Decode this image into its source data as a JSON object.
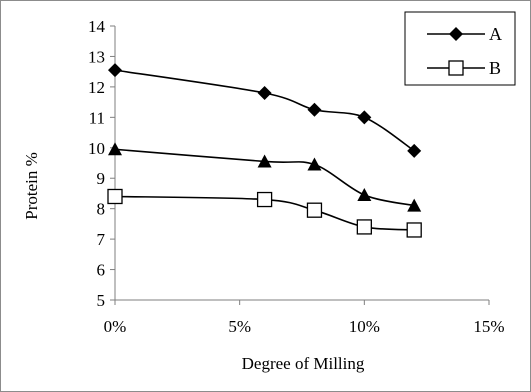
{
  "chart_data": {
    "type": "line",
    "xlabel": "Degree of Milling",
    "ylabel": "Protein %",
    "x_tick_labels": [
      "0%",
      "5%",
      "10%",
      "15%"
    ],
    "y_tick_labels": [
      "5",
      "6",
      "7",
      "8",
      "9",
      "10",
      "11",
      "12",
      "13",
      "14"
    ],
    "xlim": [
      0,
      15
    ],
    "ylim": [
      5,
      14
    ],
    "x_ticks": [
      0,
      5,
      10,
      15
    ],
    "y_ticks": [
      5,
      6,
      7,
      8,
      9,
      10,
      11,
      12,
      13,
      14
    ],
    "grid": false,
    "legend_position": "top-right",
    "series": [
      {
        "name": "A",
        "marker": "diamond",
        "color": "#000000",
        "x": [
          0,
          6,
          8,
          10,
          12
        ],
        "y": [
          12.55,
          11.8,
          11.25,
          11.0,
          9.9
        ]
      },
      {
        "name": "",
        "marker": "triangle",
        "color": "#000000",
        "x": [
          0,
          6,
          8,
          10,
          12
        ],
        "y": [
          9.95,
          9.55,
          9.45,
          8.45,
          8.1
        ]
      },
      {
        "name": "B",
        "marker": "square-open",
        "color": "#000000",
        "x": [
          0,
          6,
          8,
          10,
          12
        ],
        "y": [
          8.4,
          8.3,
          7.95,
          7.4,
          7.3
        ]
      }
    ]
  }
}
